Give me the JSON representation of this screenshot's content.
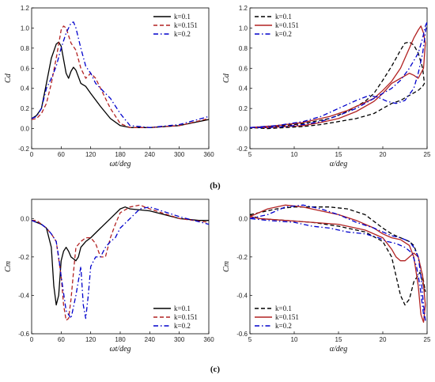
{
  "panel_labels": {
    "b": "(b)",
    "c": "(c)"
  },
  "chart_data": [
    {
      "type": "line",
      "ylabel": "Cd",
      "xlabel": "ωt/deg",
      "xlim": [
        0,
        360
      ],
      "ylim": [
        -0.2,
        1.2
      ],
      "xticks": [
        0,
        60,
        120,
        180,
        240,
        300,
        360
      ],
      "yticks": [
        -0.2,
        0.0,
        0.2,
        0.4,
        0.6,
        0.8,
        1.0,
        1.2
      ],
      "xtick_labels": [
        "0",
        "60",
        "120",
        "180",
        "240",
        "300",
        "360"
      ],
      "ytick_labels": [
        "-0.2",
        "0.0",
        "0.2",
        "0.4",
        "0.6",
        "0.8",
        "1.0",
        "1.2"
      ],
      "legend_position": "top-right",
      "series": [
        {
          "name": "k=0.1",
          "color": "#000000",
          "dash": "solid",
          "x": [
            0,
            10,
            20,
            30,
            40,
            50,
            55,
            60,
            70,
            75,
            80,
            85,
            90,
            100,
            110,
            120,
            140,
            160,
            180,
            200,
            240,
            300,
            360
          ],
          "y": [
            0.1,
            0.13,
            0.2,
            0.45,
            0.7,
            0.84,
            0.86,
            0.82,
            0.55,
            0.5,
            0.57,
            0.61,
            0.58,
            0.45,
            0.42,
            0.35,
            0.22,
            0.1,
            0.03,
            0.01,
            0.01,
            0.03,
            0.09
          ]
        },
        {
          "name": "k=0.151",
          "color": "#b22222",
          "dash": "dashed",
          "x": [
            0,
            10,
            20,
            30,
            40,
            50,
            60,
            65,
            70,
            80,
            90,
            100,
            110,
            120,
            130,
            140,
            160,
            180,
            200,
            240,
            300,
            360
          ],
          "y": [
            0.09,
            0.1,
            0.15,
            0.25,
            0.45,
            0.7,
            0.98,
            1.02,
            1.0,
            0.85,
            0.78,
            0.6,
            0.5,
            0.55,
            0.5,
            0.4,
            0.2,
            0.05,
            0.01,
            0.01,
            0.03,
            0.1
          ]
        },
        {
          "name": "k=0.2",
          "color": "#0000cc",
          "dash": "dashdot",
          "x": [
            0,
            10,
            20,
            30,
            40,
            50,
            60,
            70,
            80,
            85,
            90,
            100,
            110,
            120,
            130,
            140,
            150,
            160,
            180,
            200,
            240,
            300,
            360
          ],
          "y": [
            0.1,
            0.12,
            0.2,
            0.4,
            0.5,
            0.62,
            0.8,
            0.95,
            1.05,
            1.06,
            1.0,
            0.8,
            0.62,
            0.55,
            0.45,
            0.4,
            0.35,
            0.3,
            0.15,
            0.03,
            0.01,
            0.04,
            0.12
          ]
        }
      ]
    },
    {
      "type": "line",
      "ylabel": "Cd",
      "xlabel": "α/deg",
      "xlim": [
        5,
        25
      ],
      "ylim": [
        -0.2,
        1.2
      ],
      "xticks": [
        5,
        10,
        15,
        20,
        25
      ],
      "yticks": [
        -0.2,
        0.0,
        0.2,
        0.4,
        0.6,
        0.8,
        1.0,
        1.2
      ],
      "xtick_labels": [
        "5",
        "10",
        "15",
        "20",
        "25"
      ],
      "ytick_labels": [
        "-0.2",
        "0.0",
        "0.2",
        "0.4",
        "0.6",
        "0.8",
        "1.0",
        "1.2"
      ],
      "legend_position": "top-left",
      "series": [
        {
          "name": "k=0.1",
          "color": "#000000",
          "dash": "dashed",
          "x": [
            5,
            8,
            11,
            14,
            16,
            18,
            19,
            20,
            21,
            22,
            22.5,
            23,
            23.5,
            24,
            24.5,
            24.7,
            24.5,
            24,
            23,
            22,
            21,
            20,
            19,
            17,
            15,
            13,
            11,
            9,
            7,
            5
          ],
          "y": [
            0.01,
            0.02,
            0.05,
            0.1,
            0.17,
            0.27,
            0.35,
            0.48,
            0.62,
            0.78,
            0.85,
            0.86,
            0.83,
            0.75,
            0.6,
            0.45,
            0.42,
            0.38,
            0.33,
            0.28,
            0.25,
            0.2,
            0.15,
            0.1,
            0.07,
            0.04,
            0.02,
            0.01,
            0.0,
            0.01
          ]
        },
        {
          "name": "k=0.151",
          "color": "#b22222",
          "dash": "solid",
          "x": [
            5,
            8,
            11,
            14,
            16,
            18,
            19,
            20,
            21,
            22,
            23,
            23.5,
            24,
            24.3,
            24.6,
            24.8,
            24.6,
            24,
            23.5,
            23,
            22,
            21,
            20,
            19,
            17,
            15,
            13,
            11,
            9,
            7,
            5
          ],
          "y": [
            0.01,
            0.03,
            0.06,
            0.12,
            0.18,
            0.26,
            0.3,
            0.38,
            0.47,
            0.6,
            0.8,
            0.9,
            0.98,
            1.02,
            0.95,
            0.85,
            0.6,
            0.5,
            0.53,
            0.55,
            0.5,
            0.45,
            0.35,
            0.27,
            0.17,
            0.1,
            0.06,
            0.03,
            0.02,
            0.01,
            0.01
          ]
        },
        {
          "name": "k=0.2",
          "color": "#0000cc",
          "dash": "dashdot",
          "x": [
            5,
            8,
            11,
            13,
            15,
            17,
            18.5,
            19.5,
            20.5,
            21.5,
            22.5,
            23.5,
            24,
            24.5,
            24.8,
            25,
            24.8,
            24.5,
            24,
            23,
            22,
            21,
            20,
            19,
            18,
            17,
            15,
            13,
            11,
            9,
            7,
            5
          ],
          "y": [
            0.01,
            0.03,
            0.07,
            0.12,
            0.2,
            0.28,
            0.33,
            0.31,
            0.27,
            0.25,
            0.28,
            0.4,
            0.55,
            0.75,
            0.95,
            1.06,
            1.02,
            0.9,
            0.75,
            0.6,
            0.48,
            0.4,
            0.35,
            0.3,
            0.25,
            0.2,
            0.13,
            0.07,
            0.04,
            0.02,
            0.01,
            0.01
          ]
        }
      ]
    },
    {
      "type": "line",
      "ylabel": "Cm",
      "xlabel": "ωt/deg",
      "xlim": [
        0,
        360
      ],
      "ylim": [
        -0.6,
        0.1
      ],
      "xticks": [
        0,
        60,
        120,
        180,
        240,
        300,
        360
      ],
      "yticks": [
        -0.6,
        -0.4,
        -0.2,
        0.0
      ],
      "xtick_labels": [
        "0",
        "60",
        "120",
        "180",
        "240",
        "300",
        "360"
      ],
      "ytick_labels": [
        "-0.6",
        "-0.4",
        "-0.2",
        "0.0"
      ],
      "legend_position": "bottom-right",
      "series": [
        {
          "name": "k=0.1",
          "color": "#000000",
          "dash": "solid",
          "x": [
            0,
            10,
            20,
            30,
            40,
            45,
            50,
            55,
            60,
            65,
            70,
            75,
            80,
            90,
            95,
            100,
            110,
            120,
            140,
            160,
            180,
            190,
            200,
            240,
            300,
            340,
            360
          ],
          "y": [
            -0.01,
            -0.02,
            -0.03,
            -0.05,
            -0.15,
            -0.35,
            -0.45,
            -0.4,
            -0.22,
            -0.17,
            -0.15,
            -0.17,
            -0.2,
            -0.22,
            -0.2,
            -0.15,
            -0.12,
            -0.1,
            -0.05,
            0.0,
            0.05,
            0.06,
            0.05,
            0.04,
            0.0,
            -0.01,
            -0.01
          ]
        },
        {
          "name": "k=0.151",
          "color": "#b22222",
          "dash": "dashed",
          "x": [
            0,
            10,
            20,
            30,
            40,
            50,
            60,
            65,
            70,
            75,
            80,
            85,
            90,
            100,
            110,
            120,
            130,
            140,
            150,
            160,
            170,
            180,
            200,
            220,
            240,
            300,
            360
          ],
          "y": [
            -0.01,
            -0.01,
            -0.03,
            -0.05,
            -0.08,
            -0.12,
            -0.3,
            -0.45,
            -0.53,
            -0.52,
            -0.42,
            -0.28,
            -0.15,
            -0.12,
            -0.1,
            -0.1,
            -0.13,
            -0.2,
            -0.2,
            -0.1,
            -0.03,
            0.03,
            0.06,
            0.07,
            0.05,
            0.0,
            -0.02
          ]
        },
        {
          "name": "k=0.2",
          "color": "#0000cc",
          "dash": "dashdot",
          "x": [
            0,
            10,
            20,
            30,
            40,
            50,
            55,
            60,
            70,
            80,
            90,
            100,
            105,
            110,
            115,
            120,
            130,
            140,
            150,
            160,
            170,
            180,
            200,
            220,
            240,
            300,
            360
          ],
          "y": [
            -0.01,
            -0.02,
            -0.03,
            -0.05,
            -0.08,
            -0.12,
            -0.2,
            -0.3,
            -0.48,
            -0.52,
            -0.4,
            -0.25,
            -0.45,
            -0.52,
            -0.4,
            -0.25,
            -0.2,
            -0.2,
            -0.15,
            -0.12,
            -0.1,
            -0.05,
            0.0,
            0.05,
            0.06,
            0.01,
            -0.03
          ]
        }
      ]
    },
    {
      "type": "line",
      "ylabel": "Cm",
      "xlabel": "α/deg",
      "xlim": [
        5,
        25
      ],
      "ylim": [
        -0.6,
        0.1
      ],
      "xticks": [
        5,
        10,
        15,
        20,
        25
      ],
      "yticks": [
        -0.6,
        -0.4,
        -0.2,
        0.0
      ],
      "xtick_labels": [
        "5",
        "10",
        "15",
        "20",
        "25"
      ],
      "ytick_labels": [
        "-0.6",
        "-0.4",
        "-0.2",
        "0.0"
      ],
      "legend_position": "bottom-left",
      "series": [
        {
          "name": "k=0.1",
          "color": "#000000",
          "dash": "dashed",
          "x": [
            5,
            8,
            10,
            12,
            14,
            16,
            18,
            20,
            21,
            22,
            23,
            23.5,
            24,
            24.5,
            24.8,
            24.6,
            24.2,
            23.5,
            23,
            22.5,
            22,
            21.5,
            21,
            20,
            18,
            15,
            12,
            9,
            6,
            5
          ],
          "y": [
            0.02,
            0.05,
            0.06,
            0.06,
            0.06,
            0.05,
            0.02,
            -0.05,
            -0.08,
            -0.1,
            -0.12,
            -0.14,
            -0.2,
            -0.3,
            -0.38,
            -0.35,
            -0.28,
            -0.33,
            -0.42,
            -0.45,
            -0.4,
            -0.3,
            -0.2,
            -0.12,
            -0.07,
            -0.04,
            -0.02,
            -0.01,
            0.0,
            0.02
          ]
        },
        {
          "name": "k=0.151",
          "color": "#b22222",
          "dash": "solid",
          "x": [
            5,
            7,
            9,
            11,
            13,
            15,
            17,
            19,
            20,
            21,
            22,
            23,
            23.5,
            24,
            24.3,
            24.6,
            24.8,
            24.5,
            24,
            23.5,
            23,
            22.5,
            22,
            21.5,
            21,
            20,
            18,
            15,
            12,
            9,
            6,
            5
          ],
          "y": [
            0.01,
            0.05,
            0.07,
            0.06,
            0.04,
            0.02,
            -0.01,
            -0.05,
            -0.08,
            -0.1,
            -0.11,
            -0.14,
            -0.2,
            -0.35,
            -0.5,
            -0.54,
            -0.45,
            -0.3,
            -0.2,
            -0.18,
            -0.2,
            -0.22,
            -0.22,
            -0.2,
            -0.16,
            -0.1,
            -0.06,
            -0.03,
            -0.02,
            -0.01,
            0.0,
            0.01
          ]
        },
        {
          "name": "k=0.2",
          "color": "#0000cc",
          "dash": "dashdot",
          "x": [
            5,
            7,
            9,
            11,
            13,
            15,
            17,
            19,
            20,
            21,
            22,
            23,
            23.5,
            24,
            24.3,
            24.6,
            24.8,
            24.6,
            24.2,
            23.8,
            23.3,
            22.5,
            21.5,
            20.5,
            19.5,
            18,
            16,
            14,
            12,
            10,
            7,
            5
          ],
          "y": [
            0.0,
            0.02,
            0.06,
            0.07,
            0.05,
            0.02,
            -0.02,
            -0.05,
            -0.07,
            -0.09,
            -0.1,
            -0.12,
            -0.15,
            -0.2,
            -0.3,
            -0.45,
            -0.53,
            -0.5,
            -0.35,
            -0.25,
            -0.18,
            -0.15,
            -0.13,
            -0.12,
            -0.1,
            -0.08,
            -0.07,
            -0.05,
            -0.04,
            -0.02,
            -0.01,
            0.0
          ]
        }
      ]
    }
  ]
}
